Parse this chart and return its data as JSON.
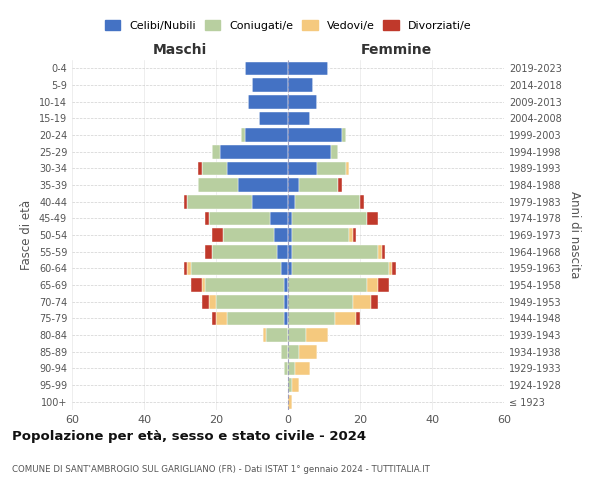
{
  "age_groups": [
    "100+",
    "95-99",
    "90-94",
    "85-89",
    "80-84",
    "75-79",
    "70-74",
    "65-69",
    "60-64",
    "55-59",
    "50-54",
    "45-49",
    "40-44",
    "35-39",
    "30-34",
    "25-29",
    "20-24",
    "15-19",
    "10-14",
    "5-9",
    "0-4"
  ],
  "birth_years": [
    "≤ 1923",
    "1924-1928",
    "1929-1933",
    "1934-1938",
    "1939-1943",
    "1944-1948",
    "1949-1953",
    "1954-1958",
    "1959-1963",
    "1964-1968",
    "1969-1973",
    "1974-1978",
    "1979-1983",
    "1984-1988",
    "1989-1993",
    "1994-1998",
    "1999-2003",
    "2004-2008",
    "2009-2013",
    "2014-2018",
    "2019-2023"
  ],
  "male": {
    "celibi": [
      0,
      0,
      0,
      0,
      0,
      1,
      1,
      1,
      2,
      3,
      4,
      5,
      10,
      14,
      17,
      19,
      12,
      8,
      11,
      10,
      12
    ],
    "coniugati": [
      0,
      0,
      1,
      2,
      6,
      16,
      19,
      22,
      25,
      18,
      14,
      17,
      18,
      11,
      7,
      2,
      1,
      0,
      0,
      0,
      0
    ],
    "vedovi": [
      0,
      0,
      0,
      0,
      1,
      3,
      2,
      1,
      1,
      0,
      0,
      0,
      0,
      0,
      0,
      0,
      0,
      0,
      0,
      0,
      0
    ],
    "divorziati": [
      0,
      0,
      0,
      0,
      0,
      1,
      2,
      3,
      1,
      2,
      3,
      1,
      1,
      0,
      1,
      0,
      0,
      0,
      0,
      0,
      0
    ]
  },
  "female": {
    "nubili": [
      0,
      0,
      0,
      0,
      0,
      0,
      0,
      0,
      1,
      1,
      1,
      1,
      2,
      3,
      8,
      12,
      15,
      6,
      8,
      7,
      11
    ],
    "coniugate": [
      0,
      1,
      2,
      3,
      5,
      13,
      18,
      22,
      27,
      24,
      16,
      21,
      18,
      11,
      8,
      2,
      1,
      0,
      0,
      0,
      0
    ],
    "vedove": [
      1,
      2,
      4,
      5,
      6,
      6,
      5,
      3,
      1,
      1,
      1,
      0,
      0,
      0,
      1,
      0,
      0,
      0,
      0,
      0,
      0
    ],
    "divorziate": [
      0,
      0,
      0,
      0,
      0,
      1,
      2,
      3,
      1,
      1,
      1,
      3,
      1,
      1,
      0,
      0,
      0,
      0,
      0,
      0,
      0
    ]
  },
  "colors": {
    "celibi": "#4472c4",
    "coniugati": "#b8cfa0",
    "vedovi": "#f5c97e",
    "divorziati": "#c0392b"
  },
  "title": "Popolazione per età, sesso e stato civile - 2024",
  "subtitle": "COMUNE DI SANT'AMBROGIO SUL GARIGLIANO (FR) - Dati ISTAT 1° gennaio 2024 - TUTTITALIA.IT",
  "xlabel_left": "Maschi",
  "xlabel_right": "Femmine",
  "ylabel_left": "Fasce di età",
  "ylabel_right": "Anni di nascita",
  "legend_labels": [
    "Celibi/Nubili",
    "Coniugati/e",
    "Vedovi/e",
    "Divorziati/e"
  ],
  "xlim": 60,
  "background_color": "#ffffff",
  "grid_color": "#cccccc"
}
